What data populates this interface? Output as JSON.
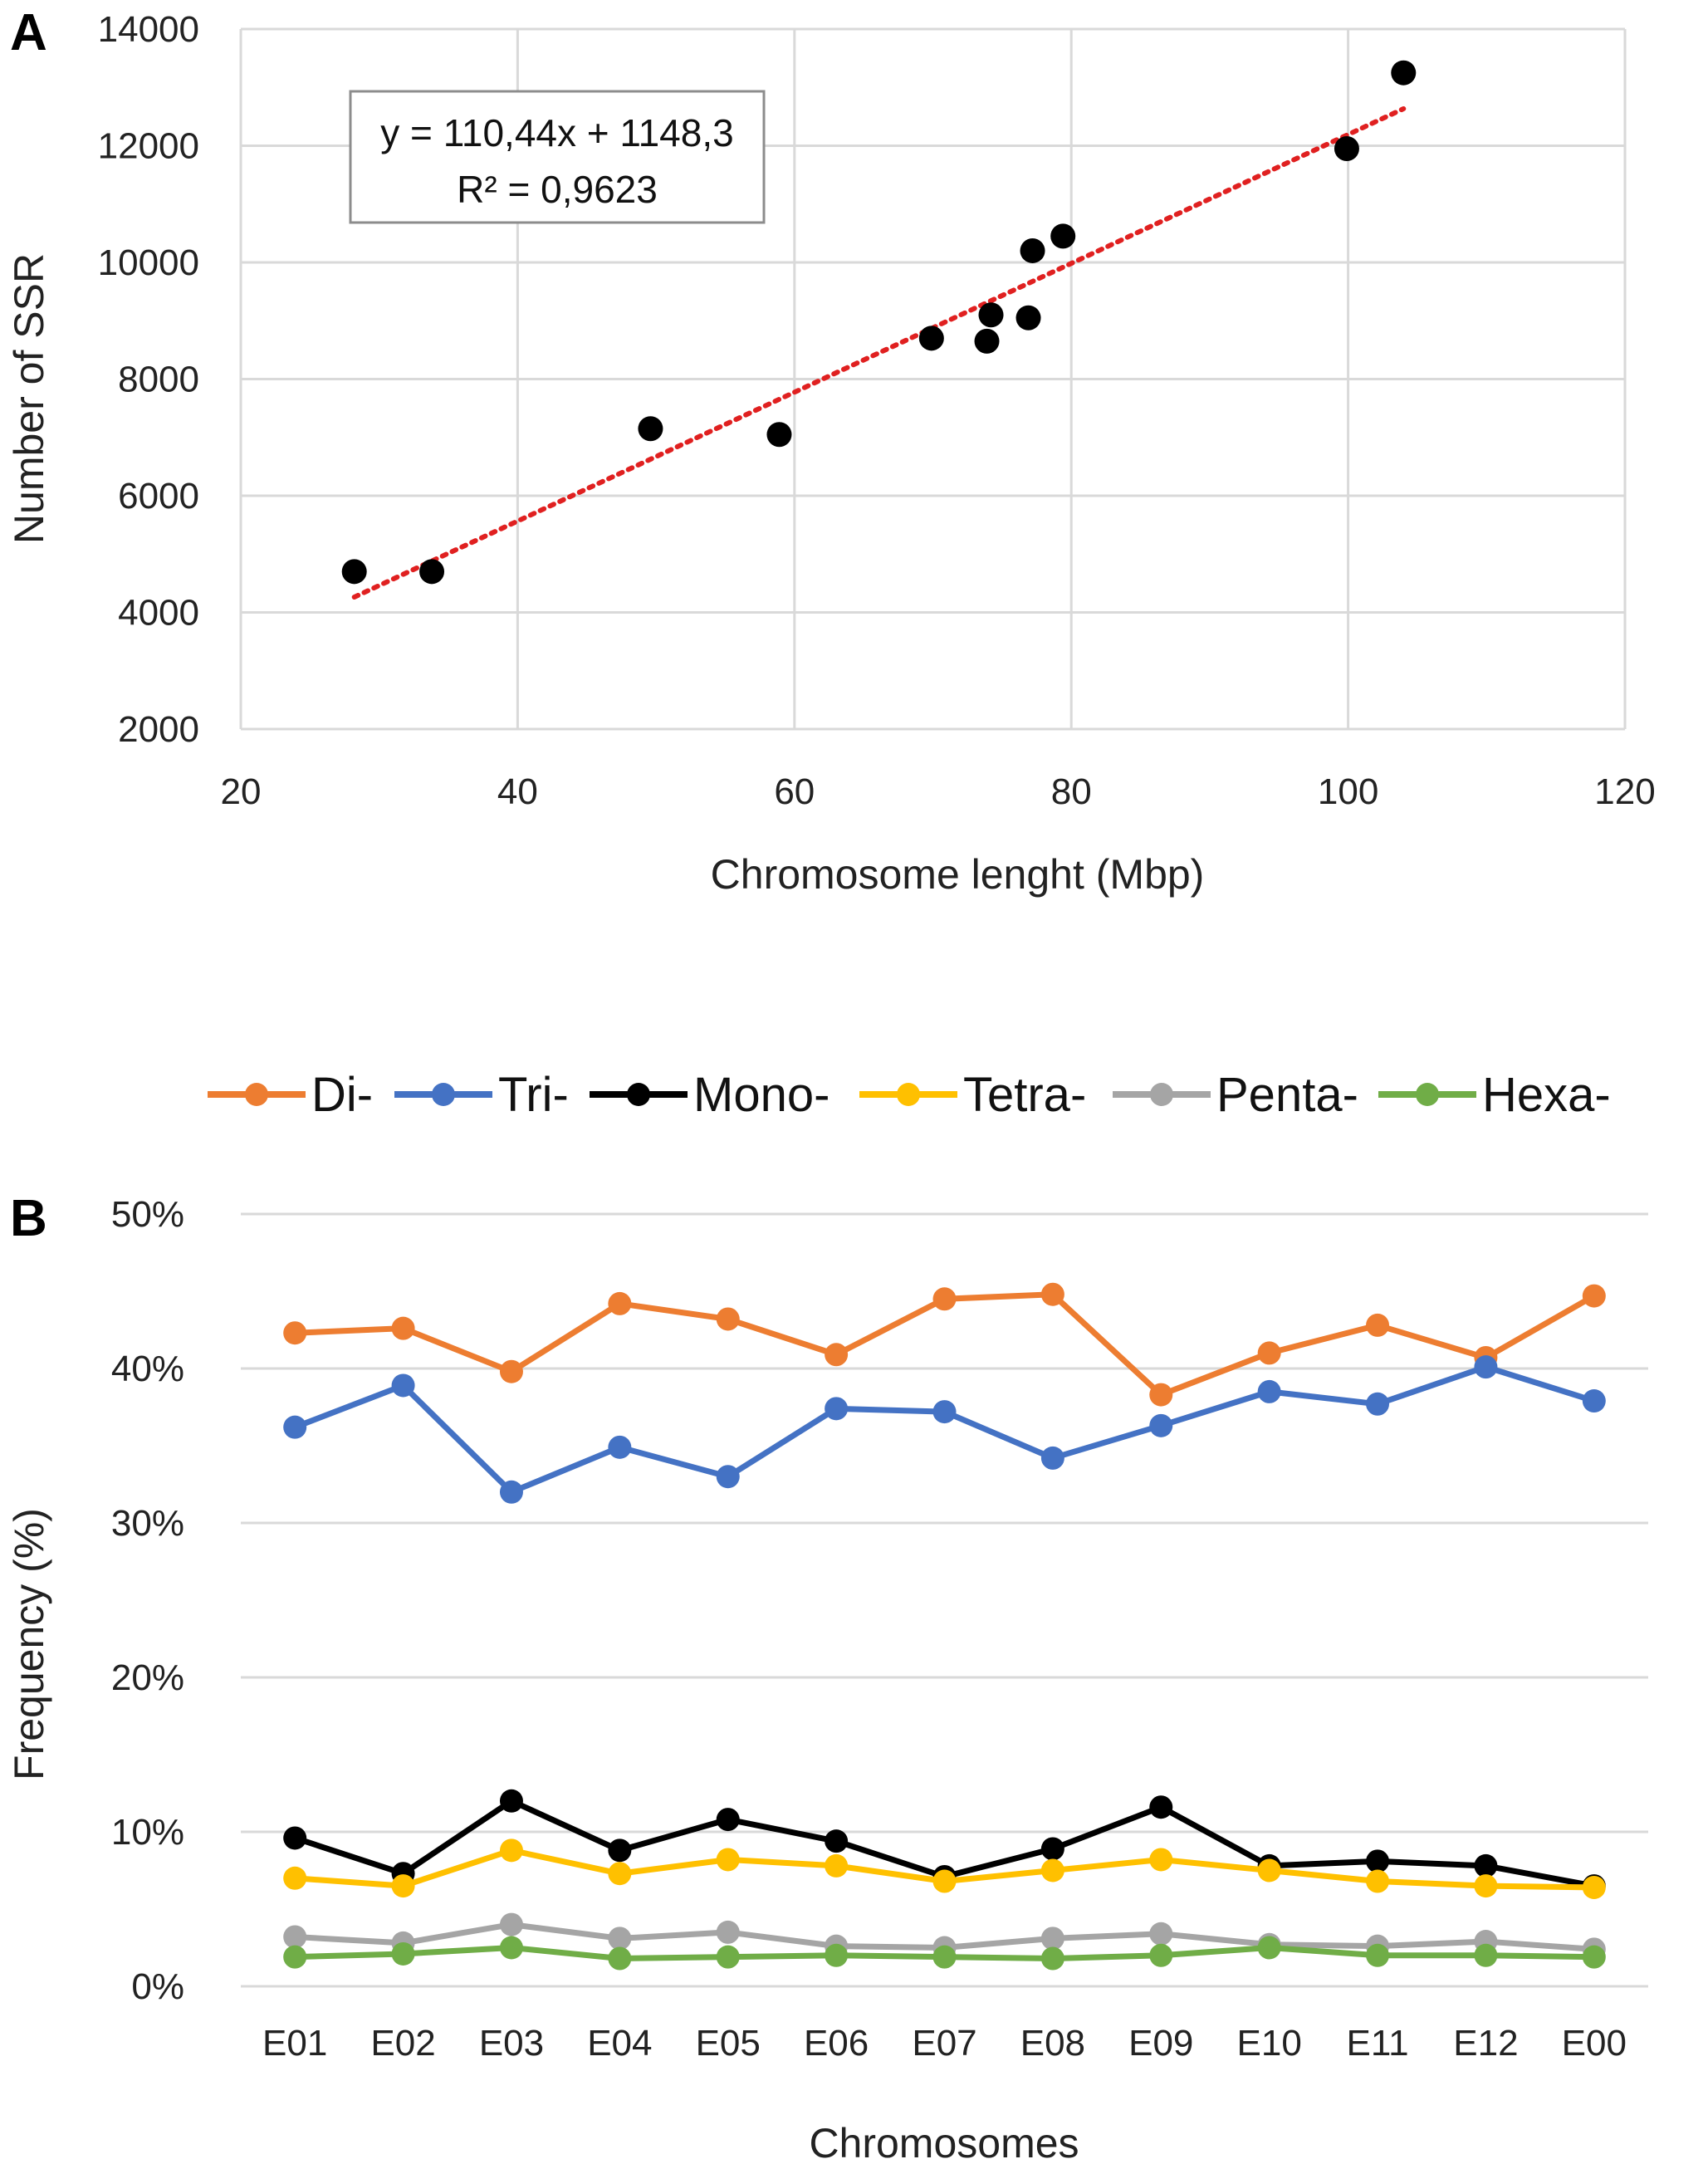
{
  "chart_data": [
    {
      "panel": "A",
      "type": "scatter",
      "xlabel": "Chromosome lenght (Mbp)",
      "ylabel": "Number of SSR",
      "xlim": [
        20,
        120
      ],
      "ylim": [
        2000,
        14000
      ],
      "xticks": [
        "20",
        "40",
        "60",
        "80",
        "100",
        "120"
      ],
      "yticks": [
        "2000",
        "4000",
        "6000",
        "8000",
        "10000",
        "12000",
        "14000"
      ],
      "x": [
        28.2,
        33.8,
        49.6,
        58.9,
        69.9,
        73.9,
        74.2,
        76.9,
        77.2,
        79.4,
        99.9,
        104.0
      ],
      "y": [
        4700,
        4700,
        7150,
        7050,
        8700,
        8650,
        9100,
        9050,
        10200,
        10450,
        11950,
        13250
      ],
      "point_color": "#000000",
      "trendline": {
        "style": "dotted",
        "color": "#e02020",
        "slope": 110.44,
        "intercept": 1148.3,
        "x_range": [
          28.2,
          104.0
        ]
      },
      "equation": "y = 110,44x + 1148,3",
      "r_squared": "R² = 0,9623",
      "grid": true
    },
    {
      "panel": "B",
      "type": "line",
      "xlabel": "Chromosomes",
      "ylabel": "Frequency (%)",
      "ylim": [
        0,
        50
      ],
      "yticks": [
        "0%",
        "10%",
        "20%",
        "30%",
        "40%",
        "50%"
      ],
      "categories": [
        "E01",
        "E02",
        "E03",
        "E04",
        "E05",
        "E06",
        "E07",
        "E08",
        "E09",
        "E10",
        "E11",
        "E12",
        "E00"
      ],
      "legend_position": "top",
      "grid": true,
      "series": [
        {
          "name": "Di-",
          "color": "#ed7d31",
          "values": [
            42.3,
            42.6,
            39.8,
            44.2,
            43.2,
            40.9,
            44.5,
            44.8,
            38.3,
            41.0,
            42.8,
            40.7,
            44.7
          ]
        },
        {
          "name": "Tri-",
          "color": "#4472c4",
          "values": [
            36.2,
            38.9,
            32.0,
            34.9,
            33.0,
            37.4,
            37.2,
            34.2,
            36.3,
            38.5,
            37.7,
            40.1,
            37.9
          ]
        },
        {
          "name": "Mono-",
          "color": "#000000",
          "values": [
            9.6,
            7.3,
            12.0,
            8.8,
            10.8,
            9.4,
            7.1,
            8.9,
            11.6,
            7.8,
            8.1,
            7.8,
            6.5
          ]
        },
        {
          "name": "Tetra-",
          "color": "#ffc000",
          "values": [
            7.0,
            6.5,
            8.8,
            7.3,
            8.2,
            7.8,
            6.8,
            7.5,
            8.2,
            7.5,
            6.8,
            6.5,
            6.4
          ]
        },
        {
          "name": "Penta-",
          "color": "#a5a5a5",
          "values": [
            3.2,
            2.8,
            4.0,
            3.1,
            3.5,
            2.6,
            2.5,
            3.1,
            3.4,
            2.7,
            2.6,
            2.9,
            2.4
          ]
        },
        {
          "name": "Hexa-",
          "color": "#70ad47",
          "values": [
            1.9,
            2.1,
            2.5,
            1.8,
            1.9,
            2.0,
            1.9,
            1.8,
            2.0,
            2.5,
            2.0,
            2.0,
            1.9
          ]
        }
      ]
    }
  ]
}
